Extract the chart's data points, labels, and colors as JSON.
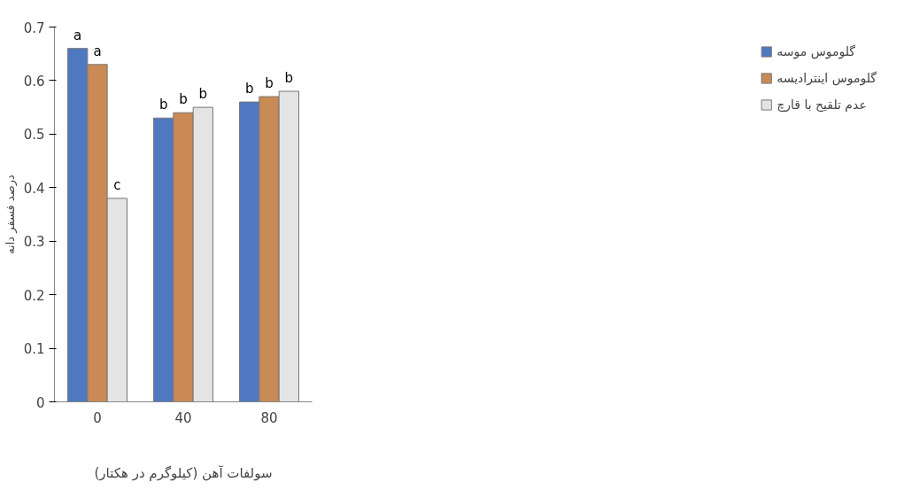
{
  "chart_data": {
    "type": "bar",
    "xlabel": "سولفات آهن (کیلوگرم در هکتار)",
    "ylabel": "درصد فسفر دانه",
    "categories": [
      "0",
      "40",
      "80"
    ],
    "series": [
      {
        "name": "گلوموس موسه",
        "color": "#4f78c0",
        "values": [
          0.66,
          0.53,
          0.56
        ],
        "value_labels": [
          "a",
          "b",
          "b"
        ]
      },
      {
        "name": "گلوموس اینترادیسه",
        "color": "#c98a55",
        "values": [
          0.63,
          0.54,
          0.57
        ],
        "value_labels": [
          "a",
          "b",
          "b"
        ]
      },
      {
        "name": "عدم تلقیح با قارچ",
        "color": "#e4e4e4",
        "values": [
          0.38,
          0.55,
          0.58
        ],
        "value_labels": [
          "c",
          "b",
          "b"
        ]
      }
    ],
    "ylim": [
      0,
      0.7
    ],
    "yticks": [
      0,
      0.1,
      0.2,
      0.3,
      0.4,
      0.5,
      0.6,
      0.7
    ],
    "grid": false,
    "legend": "right"
  }
}
